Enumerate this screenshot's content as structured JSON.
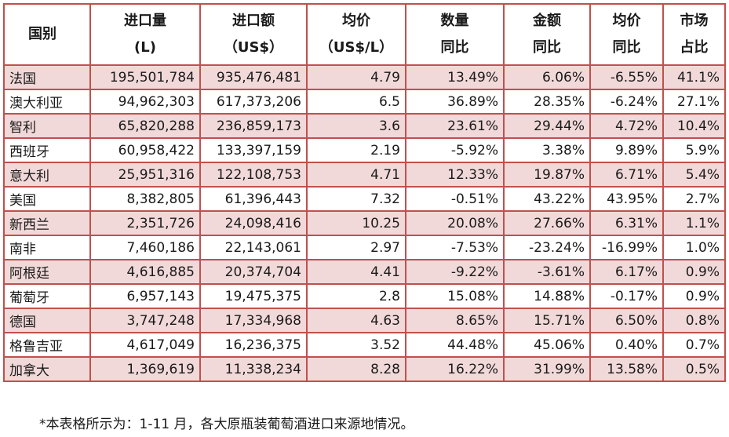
{
  "table": {
    "headers": [
      {
        "line1": "国别",
        "line2": ""
      },
      {
        "line1": "进口量",
        "line2": "(L)"
      },
      {
        "line1": "进口额",
        "line2": "（US$）"
      },
      {
        "line1": "均价",
        "line2": "（US$/L）"
      },
      {
        "line1": "数量",
        "line2": "同比"
      },
      {
        "line1": "金额",
        "line2": "同比"
      },
      {
        "line1": "均价",
        "line2": "同比"
      },
      {
        "line1": "市场",
        "line2": "占比"
      }
    ],
    "rows": [
      [
        "法国",
        "195,501,784",
        "935,476,481",
        "4.79",
        "13.49%",
        "6.06%",
        "-6.55%",
        "41.1%"
      ],
      [
        "澳大利亚",
        "94,962,303",
        "617,373,206",
        "6.5",
        "36.89%",
        "28.35%",
        "-6.24%",
        "27.1%"
      ],
      [
        "智利",
        "65,820,288",
        "236,859,173",
        "3.6",
        "23.61%",
        "29.44%",
        "4.72%",
        "10.4%"
      ],
      [
        "西班牙",
        "60,958,422",
        "133,397,159",
        "2.19",
        "-5.92%",
        "3.38%",
        "9.89%",
        "5.9%"
      ],
      [
        "意大利",
        "25,951,316",
        "122,108,753",
        "4.71",
        "12.33%",
        "19.87%",
        "6.71%",
        "5.4%"
      ],
      [
        "美国",
        "8,382,805",
        "61,396,443",
        "7.32",
        "-0.51%",
        "43.22%",
        "43.95%",
        "2.7%"
      ],
      [
        "新西兰",
        "2,351,726",
        "24,098,416",
        "10.25",
        "20.08%",
        "27.66%",
        "6.31%",
        "1.1%"
      ],
      [
        "南非",
        "7,460,186",
        "22,143,061",
        "2.97",
        "-7.53%",
        "-23.24%",
        "-16.99%",
        "1.0%"
      ],
      [
        "阿根廷",
        "4,616,885",
        "20,374,704",
        "4.41",
        "-9.22%",
        "-3.61%",
        "6.17%",
        "0.9%"
      ],
      [
        "葡萄牙",
        "6,957,143",
        "19,475,375",
        "2.8",
        "15.08%",
        "14.88%",
        "-0.17%",
        "0.9%"
      ],
      [
        "德国",
        "3,747,248",
        "17,334,968",
        "4.63",
        "8.65%",
        "15.71%",
        "6.50%",
        "0.8%"
      ],
      [
        "格鲁吉亚",
        "4,617,049",
        "16,236,375",
        "3.52",
        "44.48%",
        "45.06%",
        "0.40%",
        "0.7%"
      ],
      [
        "加拿大",
        "1,369,619",
        "11,338,234",
        "8.28",
        "16.22%",
        "31.99%",
        "13.58%",
        "0.5%"
      ]
    ]
  },
  "footnote": "*本表格所示为：1-11 月，各大原瓶装葡萄酒进口来源地情况。",
  "colors": {
    "border": "#c0504d",
    "shaded_row": "#f2d9d9"
  }
}
